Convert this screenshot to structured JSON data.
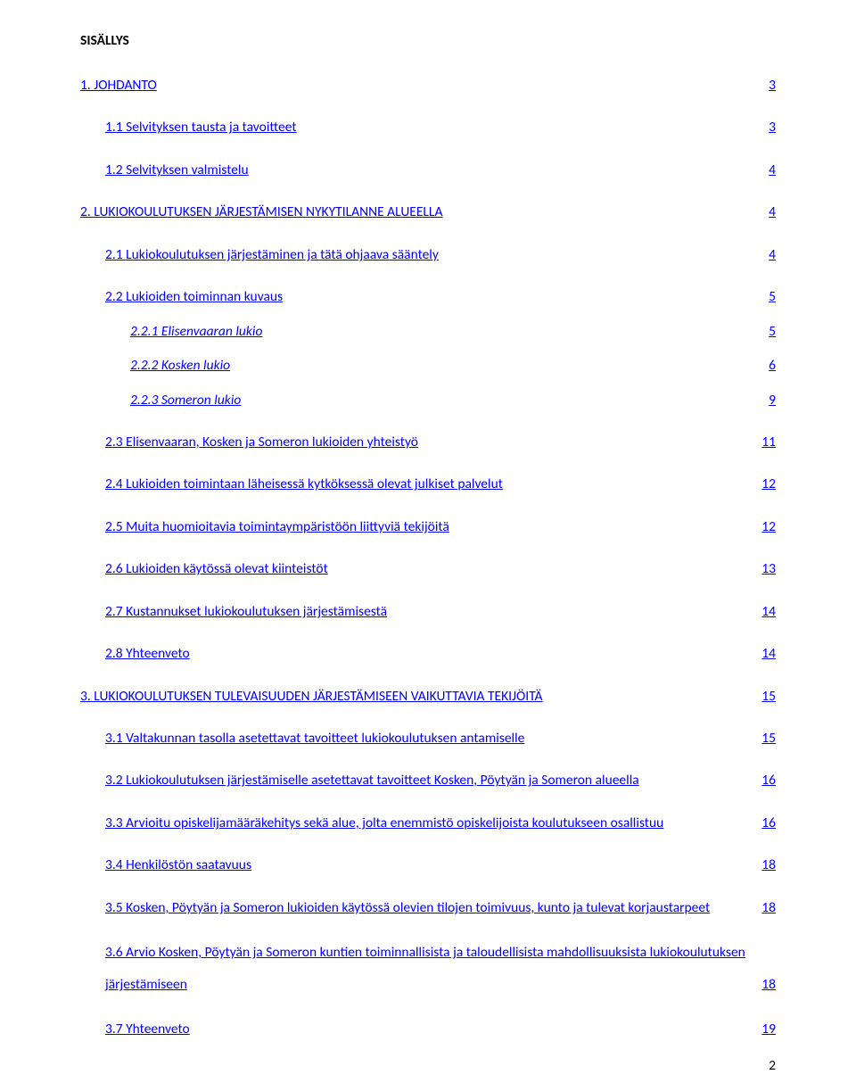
{
  "title": "SISÄLLYS",
  "footer_page": "2",
  "link_color": "#0000ff",
  "entries": [
    {
      "label": "1. JOHDANTO",
      "page": "3",
      "link": true,
      "indent": 0,
      "extra_top": true
    },
    {
      "label": "1.1 Selvityksen tausta ja tavoitteet",
      "page": "3",
      "link": true,
      "indent": 1,
      "extra_top": true
    },
    {
      "label": "1.2 Selvityksen valmistelu",
      "page": "4",
      "link": true,
      "indent": 1,
      "extra_top": true
    },
    {
      "label": "2. LUKIOKOULUTUKSEN JÄRJESTÄMISEN NYKYTILANNE ALUEELLA",
      "page": "4",
      "link": true,
      "indent": 0,
      "extra_top": true
    },
    {
      "label": "2.1 Lukiokoulutuksen järjestäminen ja tätä ohjaava sääntely",
      "page": "4",
      "link": true,
      "indent": 1,
      "extra_top": true
    },
    {
      "label": "2.2 Lukioiden toiminnan kuvaus",
      "page": "5",
      "link": true,
      "indent": 1,
      "extra_top": true
    },
    {
      "label": "2.2.1 Elisenvaaran lukio",
      "page": "5",
      "link": true,
      "indent": 2,
      "italic": true
    },
    {
      "label": "2.2.2 Kosken lukio",
      "page": "6",
      "link": true,
      "indent": 2,
      "italic": true
    },
    {
      "label": "2.2.3 Someron lukio",
      "page": "9",
      "link": true,
      "indent": 2,
      "italic": true
    },
    {
      "label": "2.3 Elisenvaaran, Kosken ja Someron lukioiden yhteistyö",
      "page": "11",
      "link": true,
      "indent": 1,
      "extra_top": true
    },
    {
      "label": "2.4 Lukioiden toimintaan läheisessä kytköksessä olevat julkiset palvelut",
      "page": "12",
      "link": true,
      "indent": 1,
      "extra_top": true
    },
    {
      "label": "2.5 Muita huomioitavia toimintaympäristöön liittyviä tekijöitä",
      "page": "12",
      "link": true,
      "indent": 1,
      "extra_top": true
    },
    {
      "label": "2.6 Lukioiden käytössä olevat kiinteistöt",
      "page": "13",
      "link": true,
      "indent": 1,
      "extra_top": true
    },
    {
      "label": "2.7 Kustannukset lukiokoulutuksen järjestämisestä",
      "page": "14",
      "link": true,
      "indent": 1,
      "extra_top": true
    },
    {
      "label": "2.8 Yhteenveto",
      "page": "14",
      "link": true,
      "indent": 1,
      "extra_top": true
    },
    {
      "label": "3. LUKIOKOULUTUKSEN TULEVAISUUDEN JÄRJESTÄMISEEN VAIKUTTAVIA TEKIJÖITÄ",
      "page": "15",
      "link": true,
      "indent": 0,
      "extra_top": true
    },
    {
      "label": "3.1 Valtakunnan tasolla asetettavat tavoitteet lukiokoulutuksen antamiselle",
      "page": "15",
      "link": true,
      "indent": 1,
      "extra_top": true
    },
    {
      "label": "3.2 Lukiokoulutuksen järjestämiselle asetettavat tavoitteet Kosken, Pöytyän ja Someron alueella",
      "page": "16",
      "link": true,
      "indent": 1,
      "extra_top": true
    },
    {
      "label": "3.3 Arvioitu opiskelijamääräkehitys sekä alue, jolta enemmistö opiskelijoista koulutukseen osallistuu",
      "page": "16",
      "link": true,
      "indent": 1,
      "extra_top": true
    },
    {
      "label": "3.4 Henkilöstön saatavuus",
      "page": "18",
      "link": true,
      "indent": 1,
      "extra_top": true
    },
    {
      "label": "3.5 Kosken, Pöytyän ja Someron lukioiden käytössä olevien tilojen toimivuus, kunto ja tulevat korjaustarpeet",
      "page": "18",
      "link": true,
      "indent": 1,
      "extra_top": true
    },
    {
      "label_line1": "3.6 Arvio Kosken, Pöytyän ja Someron kuntien toiminnallisista ja taloudellisista mahdollisuuksista lukiokoulutuksen",
      "label_line2": "järjestämiseen",
      "page": "18",
      "link": true,
      "indent": 1,
      "multi": true,
      "extra_top": true
    },
    {
      "label": "3.7 Yhteenveto",
      "page": "19",
      "link": true,
      "indent": 1,
      "extra_top": true
    }
  ]
}
